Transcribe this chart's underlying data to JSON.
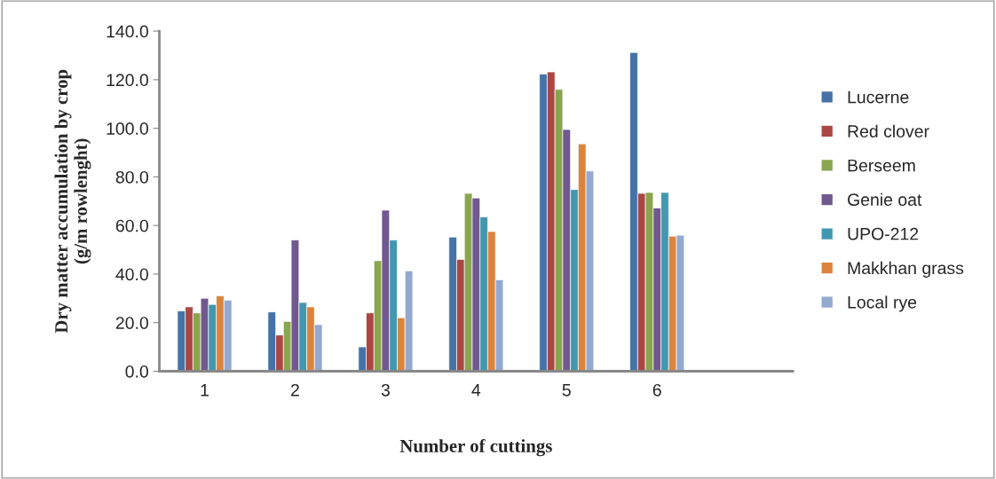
{
  "chart_data": {
    "type": "bar",
    "categories": [
      "1",
      "2",
      "3",
      "4",
      "5",
      "6",
      null
    ],
    "xlabel": "Number of cuttings",
    "ylabel": "Dry matter accumulation by crop\n(g/m rowlenght)",
    "ylim": [
      0,
      140
    ],
    "yticks": [
      {
        "value": 0,
        "label": "0.0"
      },
      {
        "value": 20,
        "label": "20.0"
      },
      {
        "value": 40,
        "label": "40.0"
      },
      {
        "value": 60,
        "label": "60.0"
      },
      {
        "value": 80,
        "label": "80.0"
      },
      {
        "value": 100,
        "label": "100.0"
      },
      {
        "value": 120,
        "label": "120.0"
      },
      {
        "value": 140,
        "label": "140.0"
      }
    ],
    "grid": false,
    "legend": "right",
    "series": [
      {
        "name": "Lucerne",
        "color": "#4572a7",
        "values": [
          24.8,
          24.4,
          10,
          55.2,
          122.3,
          131.2,
          null
        ]
      },
      {
        "name": "Red clover",
        "color": "#aa4643",
        "values": [
          26.5,
          14.9,
          24,
          46,
          123.2,
          73.2,
          null
        ]
      },
      {
        "name": "Berseem",
        "color": "#89a54e",
        "values": [
          24,
          20.5,
          45.5,
          73.2,
          116,
          73.6,
          null
        ]
      },
      {
        "name": "Genie oat",
        "color": "#71588f",
        "values": [
          30,
          54,
          66.3,
          71.3,
          99.5,
          67.2,
          null
        ]
      },
      {
        "name": "UPO-212",
        "color": "#4198af",
        "values": [
          27.5,
          28.3,
          54,
          63.5,
          74.8,
          73.6,
          null
        ]
      },
      {
        "name": "Makkhan grass",
        "color": "#db843d",
        "values": [
          31,
          26.5,
          22,
          57.5,
          93.6,
          55.6,
          null
        ]
      },
      {
        "name": "Local rye",
        "color": "#93a9cf",
        "values": [
          29.2,
          19.2,
          41.3,
          37.6,
          82.4,
          56,
          null
        ]
      }
    ]
  }
}
